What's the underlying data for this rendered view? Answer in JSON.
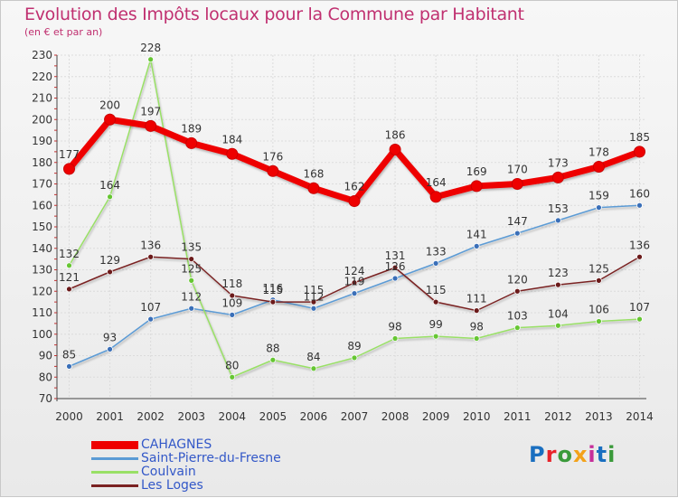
{
  "title": "Evolution des Impôts locaux pour la Commune par Habitant",
  "subtitle": "(en € et par an)",
  "logo": {
    "text": "Proxiti",
    "letter_colors": [
      "#1a6fc0",
      "#e8232a",
      "#3a9a3a",
      "#f3a21a",
      "#c62f9a",
      "#1a6fc0",
      "#3a9a3a"
    ]
  },
  "chart_data": {
    "type": "line",
    "title": "Evolution des Impôts locaux pour la Commune par Habitant",
    "ylabel": "(en € et par an)",
    "x": [
      "2000",
      "2001",
      "2002",
      "2003",
      "2004",
      "2005",
      "2006",
      "2007",
      "2008",
      "2009",
      "2010",
      "2011",
      "2012",
      "2013",
      "2014"
    ],
    "ylim": [
      70,
      230
    ],
    "yticks": [
      70,
      80,
      90,
      100,
      110,
      120,
      130,
      140,
      150,
      160,
      170,
      180,
      190,
      200,
      210,
      220,
      230
    ],
    "grid": true,
    "series": [
      {
        "name": "Saint-Pierre-du-Fresne",
        "color": "#5b9bd5",
        "dot": "#3a6fb8",
        "values": [
          85,
          93,
          107,
          112,
          109,
          116,
          112,
          119,
          126,
          133,
          141,
          147,
          153,
          159,
          160
        ]
      },
      {
        "name": "Coulvain",
        "color": "#99e066",
        "dot": "#66c633",
        "values": [
          132,
          164,
          228,
          125,
          80,
          88,
          84,
          89,
          98,
          99,
          98,
          103,
          104,
          106,
          107
        ]
      },
      {
        "name": "Les Loges",
        "color": "#7a2222",
        "dot": "#6b1a1a",
        "values": [
          121,
          129,
          136,
          135,
          118,
          115,
          115,
          124,
          131,
          115,
          111,
          120,
          123,
          125,
          136
        ]
      },
      {
        "name": "CAHAGNES",
        "color": "#ee0000",
        "dot": "#ee0000",
        "values": [
          177,
          200,
          197,
          189,
          184,
          176,
          168,
          162,
          186,
          164,
          169,
          170,
          173,
          178,
          185
        ]
      }
    ],
    "legend": [
      "CAHAGNES",
      "Saint-Pierre-du-Fresne",
      "Coulvain",
      "Les Loges"
    ],
    "legend_position": "bottom-left"
  }
}
